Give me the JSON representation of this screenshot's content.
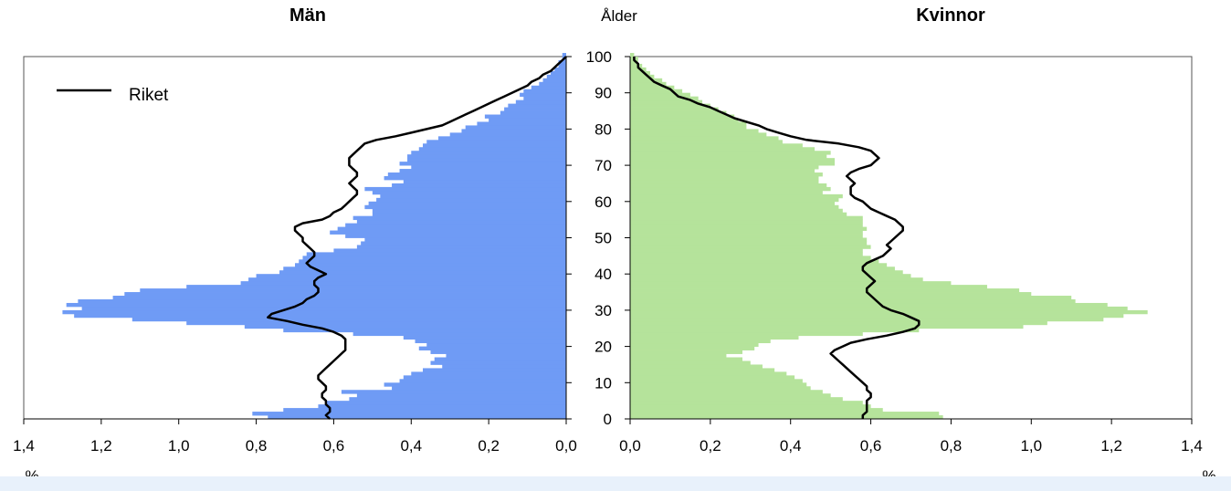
{
  "chart_data": [
    {
      "type": "bar",
      "orientation": "horizontal",
      "title": "Män",
      "ylabel": "Ålder",
      "xlabel": "%",
      "x_reversed": true,
      "xlim": [
        0,
        1.4
      ],
      "ylim": [
        0,
        100
      ],
      "xticks": [
        "1,4",
        "1,2",
        "1,0",
        "0,8",
        "0,6",
        "0,4",
        "0,2",
        "0,0"
      ],
      "yticks": [
        "0",
        "10",
        "20",
        "30",
        "40",
        "50",
        "60",
        "70",
        "80",
        "90",
        "100"
      ],
      "bar_color": "#6f9bf5",
      "ages": [
        0,
        1,
        2,
        3,
        4,
        5,
        6,
        7,
        8,
        9,
        10,
        11,
        12,
        13,
        14,
        15,
        16,
        17,
        18,
        19,
        20,
        21,
        22,
        23,
        24,
        25,
        26,
        27,
        28,
        29,
        30,
        31,
        32,
        33,
        34,
        35,
        36,
        37,
        38,
        39,
        40,
        41,
        42,
        43,
        44,
        45,
        46,
        47,
        48,
        49,
        50,
        51,
        52,
        53,
        54,
        55,
        56,
        57,
        58,
        59,
        60,
        61,
        62,
        63,
        64,
        65,
        66,
        67,
        68,
        69,
        70,
        71,
        72,
        73,
        74,
        75,
        76,
        77,
        78,
        79,
        80,
        81,
        82,
        83,
        84,
        85,
        86,
        87,
        88,
        89,
        90,
        91,
        92,
        93,
        94,
        95,
        96,
        97,
        98,
        99,
        100
      ],
      "values": [
        0.77,
        0.81,
        0.73,
        0.64,
        0.62,
        0.56,
        0.54,
        0.58,
        0.45,
        0.47,
        0.43,
        0.42,
        0.4,
        0.37,
        0.32,
        0.35,
        0.34,
        0.31,
        0.35,
        0.38,
        0.36,
        0.39,
        0.42,
        0.55,
        0.73,
        0.83,
        0.98,
        1.12,
        1.27,
        1.3,
        1.25,
        1.29,
        1.26,
        1.17,
        1.14,
        1.1,
        0.98,
        0.84,
        0.82,
        0.8,
        0.74,
        0.73,
        0.7,
        0.69,
        0.68,
        0.67,
        0.6,
        0.54,
        0.53,
        0.52,
        0.57,
        0.61,
        0.59,
        0.57,
        0.54,
        0.55,
        0.5,
        0.5,
        0.52,
        0.51,
        0.49,
        0.48,
        0.5,
        0.52,
        0.45,
        0.42,
        0.47,
        0.46,
        0.43,
        0.4,
        0.43,
        0.41,
        0.41,
        0.4,
        0.38,
        0.37,
        0.36,
        0.33,
        0.3,
        0.27,
        0.26,
        0.23,
        0.2,
        0.21,
        0.17,
        0.16,
        0.15,
        0.13,
        0.11,
        0.12,
        0.11,
        0.09,
        0.07,
        0.06,
        0.05,
        0.04,
        0.03,
        0.02,
        0.02,
        0.01,
        0.01
      ],
      "series": [
        {
          "name": "Riket",
          "x": [
            0.61,
            0.62,
            0.61,
            0.61,
            0.62,
            0.62,
            0.63,
            0.63,
            0.62,
            0.62,
            0.63,
            0.64,
            0.64,
            0.63,
            0.62,
            0.61,
            0.6,
            0.59,
            0.58,
            0.57,
            0.57,
            0.57,
            0.57,
            0.58,
            0.6,
            0.63,
            0.68,
            0.72,
            0.77,
            0.76,
            0.73,
            0.7,
            0.68,
            0.67,
            0.65,
            0.64,
            0.64,
            0.65,
            0.65,
            0.64,
            0.62,
            0.64,
            0.66,
            0.67,
            0.66,
            0.65,
            0.65,
            0.66,
            0.67,
            0.68,
            0.68,
            0.69,
            0.7,
            0.7,
            0.68,
            0.63,
            0.61,
            0.6,
            0.58,
            0.57,
            0.56,
            0.55,
            0.54,
            0.54,
            0.55,
            0.56,
            0.55,
            0.54,
            0.54,
            0.55,
            0.56,
            0.56,
            0.56,
            0.55,
            0.54,
            0.53,
            0.52,
            0.49,
            0.44,
            0.4,
            0.36,
            0.32,
            0.3,
            0.28,
            0.26,
            0.24,
            0.22,
            0.2,
            0.18,
            0.16,
            0.14,
            0.12,
            0.1,
            0.09,
            0.07,
            0.06,
            0.04,
            0.03,
            0.02,
            0.01,
            0.0
          ]
        }
      ],
      "legend": [
        "Riket"
      ],
      "legend_position": "top-left"
    },
    {
      "type": "bar",
      "orientation": "horizontal",
      "title": "Kvinnor",
      "xlabel": "%",
      "xlim": [
        0,
        1.4
      ],
      "ylim": [
        0,
        100
      ],
      "xticks": [
        "0,0",
        "0,2",
        "0,4",
        "0,6",
        "0,8",
        "1,0",
        "1,2",
        "1,4"
      ],
      "bar_color": "#b5e39b",
      "ages": [
        0,
        1,
        2,
        3,
        4,
        5,
        6,
        7,
        8,
        9,
        10,
        11,
        12,
        13,
        14,
        15,
        16,
        17,
        18,
        19,
        20,
        21,
        22,
        23,
        24,
        25,
        26,
        27,
        28,
        29,
        30,
        31,
        32,
        33,
        34,
        35,
        36,
        37,
        38,
        39,
        40,
        41,
        42,
        43,
        44,
        45,
        46,
        47,
        48,
        49,
        50,
        51,
        52,
        53,
        54,
        55,
        56,
        57,
        58,
        59,
        60,
        61,
        62,
        63,
        64,
        65,
        66,
        67,
        68,
        69,
        70,
        71,
        72,
        73,
        74,
        75,
        76,
        77,
        78,
        79,
        80,
        81,
        82,
        83,
        84,
        85,
        86,
        87,
        88,
        89,
        90,
        91,
        92,
        93,
        94,
        95,
        96,
        97,
        98,
        99,
        100
      ],
      "values": [
        0.78,
        0.77,
        0.63,
        0.6,
        0.58,
        0.53,
        0.5,
        0.48,
        0.45,
        0.44,
        0.43,
        0.41,
        0.39,
        0.36,
        0.33,
        0.3,
        0.28,
        0.24,
        0.28,
        0.31,
        0.32,
        0.35,
        0.42,
        0.58,
        0.72,
        0.98,
        1.04,
        1.18,
        1.23,
        1.29,
        1.24,
        1.19,
        1.11,
        1.1,
        1.0,
        0.97,
        0.89,
        0.8,
        0.73,
        0.7,
        0.68,
        0.66,
        0.64,
        0.62,
        0.6,
        0.58,
        0.58,
        0.6,
        0.59,
        0.59,
        0.58,
        0.58,
        0.59,
        0.58,
        0.58,
        0.58,
        0.54,
        0.53,
        0.52,
        0.51,
        0.52,
        0.53,
        0.48,
        0.5,
        0.49,
        0.47,
        0.47,
        0.48,
        0.46,
        0.47,
        0.51,
        0.51,
        0.49,
        0.5,
        0.46,
        0.43,
        0.38,
        0.37,
        0.34,
        0.32,
        0.29,
        0.29,
        0.27,
        0.26,
        0.24,
        0.22,
        0.2,
        0.18,
        0.17,
        0.15,
        0.13,
        0.11,
        0.09,
        0.08,
        0.06,
        0.05,
        0.04,
        0.03,
        0.02,
        0.02,
        0.01
      ],
      "series": [
        {
          "name": "Riket",
          "x": [
            0.58,
            0.58,
            0.59,
            0.59,
            0.59,
            0.59,
            0.6,
            0.6,
            0.59,
            0.59,
            0.58,
            0.57,
            0.56,
            0.55,
            0.54,
            0.53,
            0.52,
            0.51,
            0.5,
            0.51,
            0.53,
            0.55,
            0.59,
            0.64,
            0.68,
            0.71,
            0.72,
            0.72,
            0.7,
            0.68,
            0.65,
            0.63,
            0.62,
            0.61,
            0.6,
            0.59,
            0.59,
            0.6,
            0.61,
            0.6,
            0.59,
            0.58,
            0.58,
            0.59,
            0.61,
            0.63,
            0.64,
            0.65,
            0.64,
            0.65,
            0.66,
            0.67,
            0.68,
            0.68,
            0.67,
            0.66,
            0.64,
            0.62,
            0.6,
            0.59,
            0.58,
            0.56,
            0.55,
            0.55,
            0.55,
            0.56,
            0.55,
            0.54,
            0.55,
            0.57,
            0.6,
            0.61,
            0.62,
            0.61,
            0.6,
            0.57,
            0.52,
            0.44,
            0.4,
            0.37,
            0.34,
            0.32,
            0.29,
            0.26,
            0.24,
            0.22,
            0.2,
            0.17,
            0.15,
            0.12,
            0.11,
            0.1,
            0.08,
            0.06,
            0.05,
            0.04,
            0.03,
            0.02,
            0.02,
            0.01,
            0.01
          ]
        }
      ]
    }
  ]
}
